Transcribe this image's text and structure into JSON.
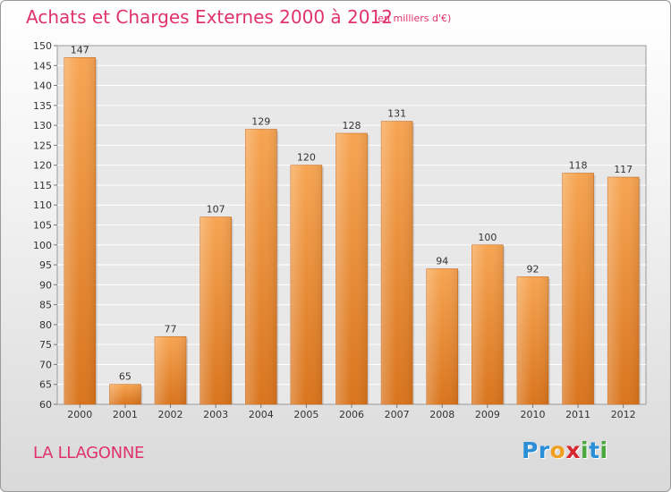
{
  "chart_data": {
    "type": "bar",
    "title": "Achats et Charges Externes 2000 à 2012",
    "subtitle": "(en milliers d'€)",
    "categories": [
      "2000",
      "2001",
      "2002",
      "2003",
      "2004",
      "2005",
      "2006",
      "2007",
      "2008",
      "2009",
      "2010",
      "2011",
      "2012"
    ],
    "values": [
      147,
      65,
      77,
      107,
      129,
      120,
      128,
      131,
      94,
      100,
      92,
      118,
      117
    ],
    "ylim": [
      60,
      150
    ],
    "yticks": [
      60,
      65,
      70,
      75,
      80,
      85,
      90,
      95,
      100,
      105,
      110,
      115,
      120,
      125,
      130,
      135,
      140,
      145,
      150
    ],
    "grid": true,
    "bar_color": "#f0922e",
    "title_color": "#e0326e"
  },
  "footer": {
    "commune": "LA LLAGONNE",
    "logo_letters": [
      {
        "ch": "P",
        "color": "#2a8fd6"
      },
      {
        "ch": "r",
        "color": "#2a8fd6"
      },
      {
        "ch": "o",
        "color": "#f0a020"
      },
      {
        "ch": "x",
        "color": "#d8262e"
      },
      {
        "ch": "i",
        "color": "#49a83b"
      },
      {
        "ch": "t",
        "color": "#2a8fd6"
      },
      {
        "ch": "i",
        "color": "#49a83b"
      }
    ]
  }
}
